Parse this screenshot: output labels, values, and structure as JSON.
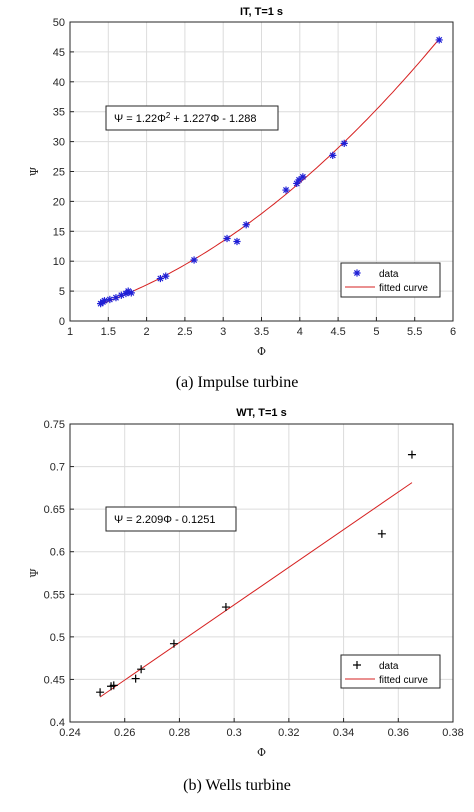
{
  "chart_data": [
    {
      "type": "scatter",
      "title": "IT, T=1 s",
      "xlabel": "Φ",
      "ylabel": "Ψ",
      "xlim": [
        1,
        6
      ],
      "ylim": [
        0,
        50
      ],
      "xticks": [
        "1",
        "1.5",
        "2",
        "2.5",
        "3",
        "3.5",
        "4",
        "4.5",
        "5",
        "5.5",
        "6"
      ],
      "yticks": [
        "0",
        "5",
        "10",
        "15",
        "20",
        "25",
        "30",
        "35",
        "40",
        "45",
        "50"
      ],
      "grid": true,
      "legend_position": "bottom-right",
      "equation_parts": [
        "Ψ = 1.22Φ",
        "2",
        " + 1.227Φ - 1.288"
      ],
      "fit": {
        "a": 1.22,
        "b": 1.227,
        "c": -1.288
      },
      "marker": "asterisk",
      "marker_color": "#1f1fd6",
      "fit_color": "#d62020",
      "series": [
        {
          "name": "data",
          "x": [
            1.4,
            1.43,
            1.45,
            1.52,
            1.6,
            1.67,
            1.73,
            1.76,
            1.8,
            2.18,
            2.25,
            2.62,
            3.05,
            3.18,
            3.3,
            3.82,
            3.96,
            3.99,
            4.04,
            4.43,
            4.58,
            5.82
          ],
          "y": [
            2.9,
            3.2,
            3.4,
            3.6,
            3.9,
            4.3,
            4.6,
            5.0,
            4.7,
            7.1,
            7.5,
            10.2,
            13.8,
            13.3,
            16.1,
            21.9,
            23.0,
            23.6,
            24.1,
            27.7,
            29.7,
            47.0
          ]
        },
        {
          "name": "fitted curve"
        }
      ],
      "caption": "(a) Impulse turbine"
    },
    {
      "type": "scatter",
      "title": "WT, T=1 s",
      "xlabel": "Φ",
      "ylabel": "Ψ",
      "xlim": [
        0.24,
        0.38
      ],
      "ylim": [
        0.4,
        0.75
      ],
      "xticks": [
        "0.24",
        "0.26",
        "0.28",
        "0.3",
        "0.32",
        "0.34",
        "0.36",
        "0.38"
      ],
      "yticks": [
        "0.4",
        "0.45",
        "0.5",
        "0.55",
        "0.6",
        "0.65",
        "0.7",
        "0.75"
      ],
      "grid": true,
      "legend_position": "bottom-right",
      "equation_parts": [
        "Ψ = 2.209Φ - 0.1251"
      ],
      "fit": {
        "m": 2.209,
        "c": -0.1251
      },
      "marker": "plus",
      "marker_color": "#000000",
      "fit_color": "#d62020",
      "series": [
        {
          "name": "data",
          "x": [
            0.251,
            0.255,
            0.256,
            0.264,
            0.266,
            0.278,
            0.297,
            0.354,
            0.365
          ],
          "y": [
            0.435,
            0.442,
            0.443,
            0.451,
            0.462,
            0.492,
            0.535,
            0.621,
            0.714
          ]
        },
        {
          "name": "fitted curve"
        }
      ],
      "caption": "(b) Wells turbine"
    }
  ]
}
